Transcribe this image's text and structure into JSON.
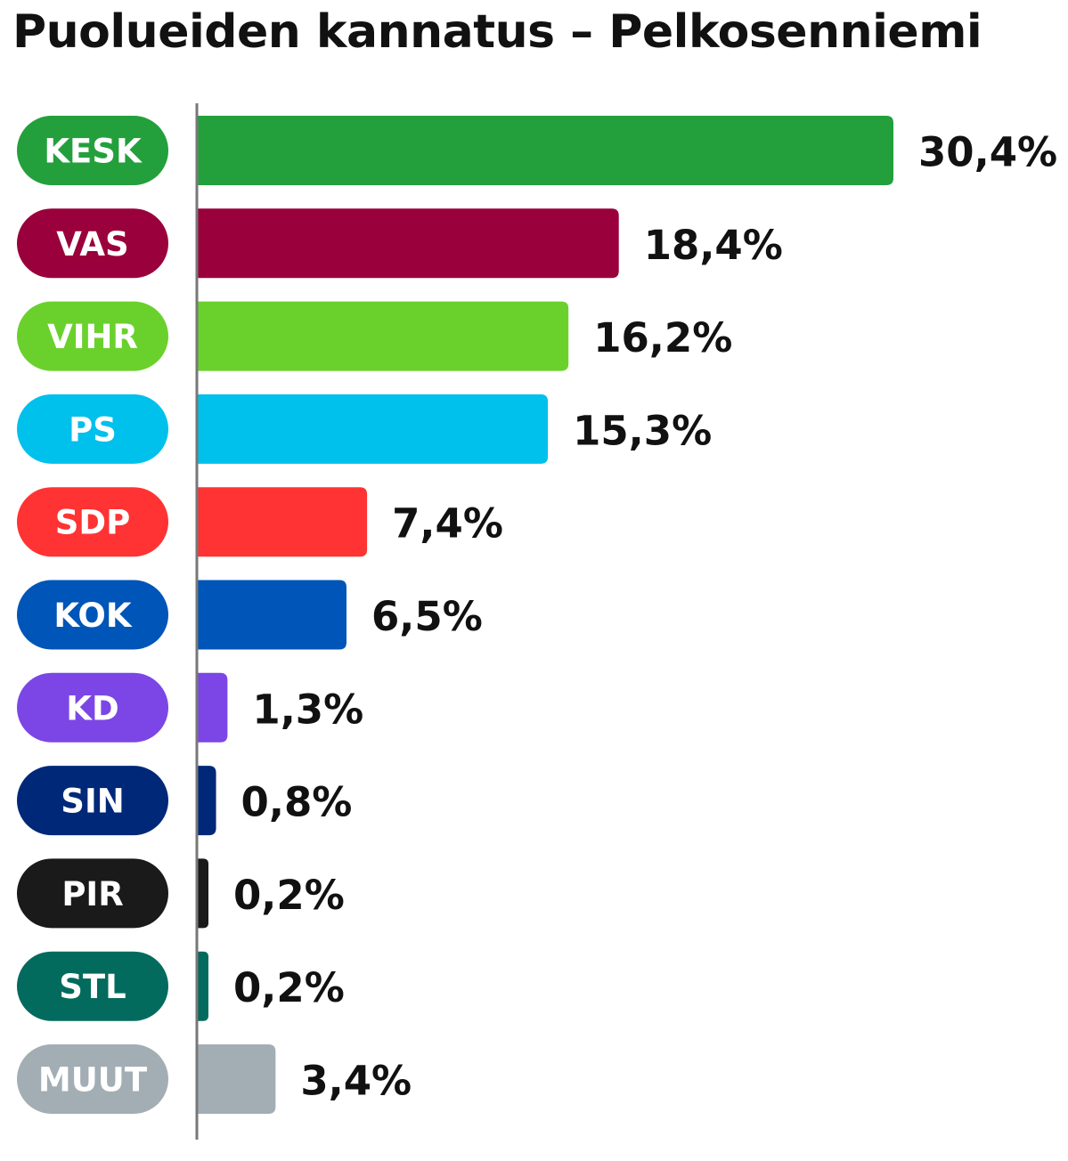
{
  "title": "Puolueiden kannatus – Pelkosenniemi",
  "chart_data": {
    "type": "bar",
    "orientation": "horizontal",
    "title": "Puolueiden kannatus – Pelkosenniemi",
    "categories": [
      "KESK",
      "VAS",
      "VIHR",
      "PS",
      "SDP",
      "KOK",
      "KD",
      "SIN",
      "PIR",
      "STL",
      "MUUT"
    ],
    "values": [
      30.4,
      18.4,
      16.2,
      15.3,
      7.4,
      6.5,
      1.3,
      0.8,
      0.2,
      0.2,
      3.4
    ],
    "value_labels": [
      "30,4%",
      "18,4%",
      "16,2%",
      "15,3%",
      "7,4%",
      "6,5%",
      "1,3%",
      "0,8%",
      "0,2%",
      "0,2%",
      "3,4%"
    ],
    "colors": [
      "#23a03c",
      "#9a003b",
      "#6ad12c",
      "#00c0ec",
      "#ff3333",
      "#0055b8",
      "#7c46e6",
      "#002878",
      "#1a1a1a",
      "#036b5e",
      "#a2aeb4"
    ],
    "xlabel": "",
    "ylabel": "",
    "legend": "none",
    "grid": false
  }
}
